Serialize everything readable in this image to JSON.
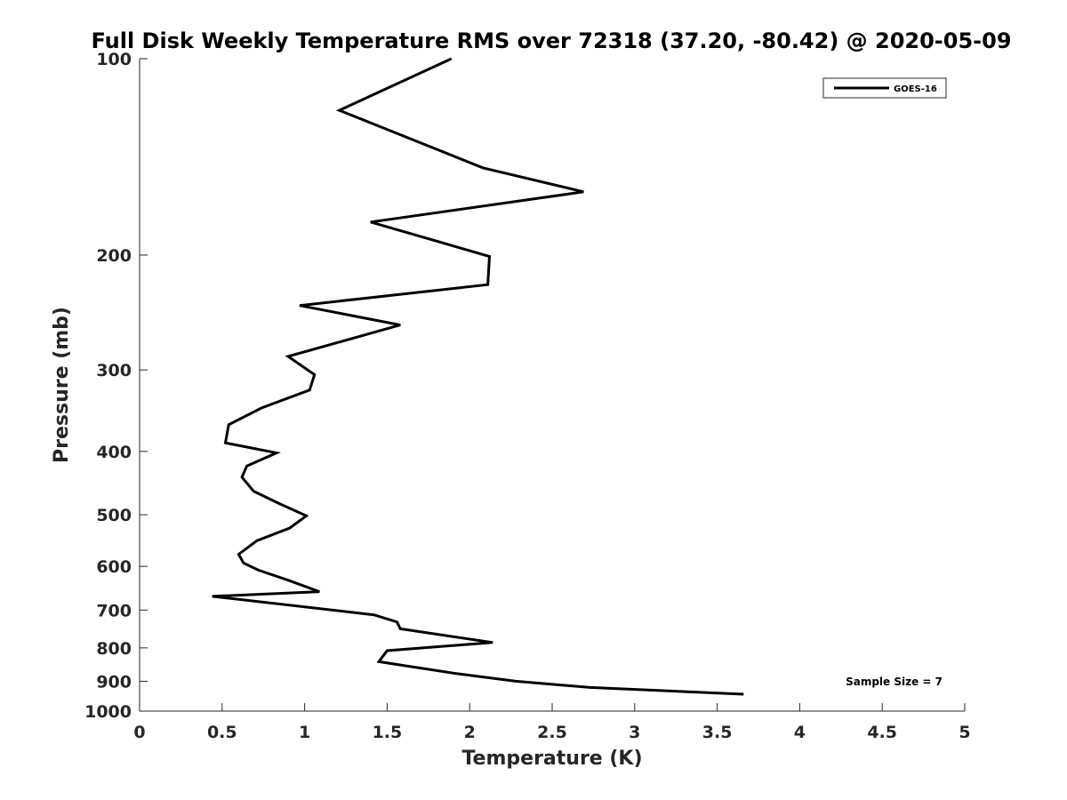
{
  "chart_data": {
    "type": "line",
    "title": "Full Disk Weekly Temperature RMS over 72318 (37.20, -80.42) @ 2020-05-09",
    "xlabel": "Temperature (K)",
    "ylabel": "Pressure (mb)",
    "xlim": [
      0,
      5
    ],
    "ylim": [
      1000,
      100
    ],
    "yscale": "log",
    "x_ticks": [
      0,
      0.5,
      1,
      1.5,
      2,
      2.5,
      3,
      3.5,
      4,
      4.5,
      5
    ],
    "x_tick_labels": [
      "0",
      "0.5",
      "1",
      "1.5",
      "2",
      "2.5",
      "3",
      "3.5",
      "4",
      "4.5",
      "5"
    ],
    "y_ticks": [
      100,
      200,
      300,
      400,
      500,
      600,
      700,
      800,
      900,
      1000
    ],
    "y_tick_labels": [
      "100",
      "200",
      "300",
      "400",
      "500",
      "600",
      "700",
      "800",
      "900",
      "1000"
    ],
    "grid": false,
    "legend": "top-right",
    "series": [
      {
        "name": "GOES-16",
        "color": "#000000",
        "x": [
          1.89,
          1.21,
          2.08,
          2.69,
          1.4,
          2.12,
          2.11,
          0.97,
          1.58,
          0.9,
          1.06,
          1.03,
          0.74,
          0.54,
          0.52,
          0.83,
          0.65,
          0.62,
          0.69,
          0.84,
          1.01,
          0.91,
          0.71,
          0.6,
          0.63,
          0.72,
          0.9,
          1.09,
          0.44,
          1.42,
          1.56,
          1.58,
          2.14,
          1.5,
          1.45,
          1.92,
          2.28,
          2.73,
          3.66
        ],
        "y": [
          100,
          120,
          147,
          160,
          178,
          201,
          222,
          239,
          256,
          286,
          305,
          322,
          343,
          364,
          388,
          402,
          421,
          438,
          460,
          480,
          502,
          524,
          548,
          575,
          593,
          608,
          630,
          656,
          667,
          712,
          730,
          748,
          785,
          808,
          840,
          876,
          900,
          920,
          942
        ]
      }
    ],
    "annotations": [
      {
        "text": "Sample Size = 7",
        "position": "bottom-right"
      }
    ]
  }
}
